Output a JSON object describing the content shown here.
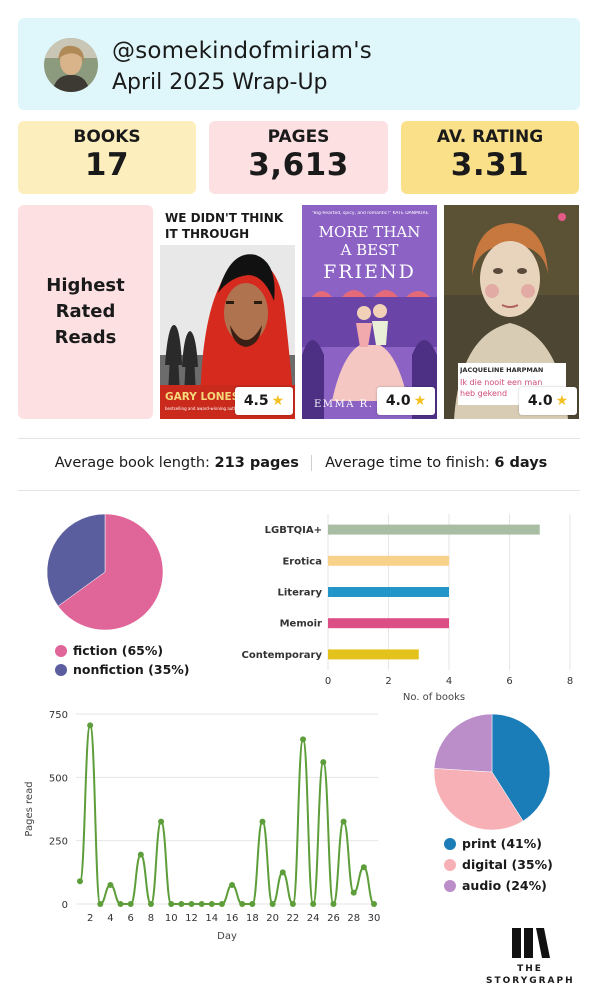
{
  "header": {
    "handle": "@somekindofmiriam's",
    "subtitle": "April 2025 Wrap-Up"
  },
  "stats": {
    "books_label": "BOOKS",
    "books_value": "17",
    "pages_label": "PAGES",
    "pages_value": "3,613",
    "rating_label": "AV. RATING",
    "rating_value": "3.31"
  },
  "highest_rated": {
    "label": "Highest\nRated\nReads",
    "books": [
      {
        "title_lines": [
          "WE DIDN'T THINK",
          "IT THROUGH"
        ],
        "author": "GARY LONES",
        "author_note": "bestselling and award-winning author",
        "rating": "4.5"
      },
      {
        "tagline": "\"Big-hearted, spicy, and romantic!\" KATE DANMORE",
        "title_lines": [
          "MORE THAN",
          "A BEST",
          "FRIEND"
        ],
        "author": "EMMA R.",
        "rating": "4.0"
      },
      {
        "author": "JACQUELINE HARPMAN",
        "title_lines": [
          "Ik die nooit een man",
          "heb gekend"
        ],
        "rating": "4.0"
      }
    ]
  },
  "averages": {
    "length_label": "Average book length: ",
    "length_value": "213 pages",
    "time_label": "Average time to finish: ",
    "time_value": "6 days"
  },
  "colors": {
    "fiction": "#e0669a",
    "nonfiction": "#5b5e9e",
    "print": "#1b7db8",
    "digital": "#f7b0b6",
    "audio": "#bb8ec9",
    "line": "#5e9e3a"
  },
  "chart_data": [
    {
      "type": "pie",
      "labels": [
        "fiction (65%)",
        "nonfiction (35%)"
      ],
      "values": [
        65,
        35
      ],
      "legend": "bottom"
    },
    {
      "type": "bar",
      "orientation": "horizontal",
      "categories": [
        "LGBTQIA+",
        "Erotica",
        "Literary",
        "Memoir",
        "Contemporary"
      ],
      "values": [
        7,
        4,
        4,
        4,
        3
      ],
      "colors": [
        "#a9bda3",
        "#f8d18a",
        "#2296c9",
        "#db4e86",
        "#e3c21c"
      ],
      "xlabel": "No. of books",
      "xlim": [
        0,
        8
      ],
      "xticks": [
        "0",
        "2",
        "4",
        "6",
        "8"
      ],
      "grid": true
    },
    {
      "type": "line",
      "x": [
        1,
        2,
        3,
        4,
        5,
        6,
        7,
        8,
        9,
        10,
        11,
        12,
        13,
        14,
        15,
        16,
        17,
        18,
        19,
        20,
        21,
        22,
        23,
        24,
        25,
        26,
        27,
        28,
        29,
        30
      ],
      "values": [
        90,
        705,
        0,
        75,
        0,
        0,
        195,
        0,
        325,
        0,
        0,
        0,
        0,
        0,
        0,
        75,
        0,
        0,
        325,
        0,
        125,
        0,
        650,
        0,
        560,
        0,
        325,
        45,
        145,
        0
      ],
      "xlabel": "Day",
      "ylabel": "Pages read",
      "ylim": [
        0,
        750
      ],
      "yticks": [
        "0",
        "250",
        "500",
        "750"
      ],
      "xticks": [
        "2",
        "4",
        "6",
        "8",
        "10",
        "12",
        "14",
        "16",
        "18",
        "20",
        "22",
        "24",
        "26",
        "28",
        "30"
      ],
      "grid": true
    },
    {
      "type": "pie",
      "labels": [
        "print (41%)",
        "digital (35%)",
        "audio (24%)"
      ],
      "values": [
        41,
        35,
        24
      ],
      "legend": "bottom"
    }
  ],
  "logo": {
    "line1": "THE",
    "line2": "STORYGRAPH"
  }
}
